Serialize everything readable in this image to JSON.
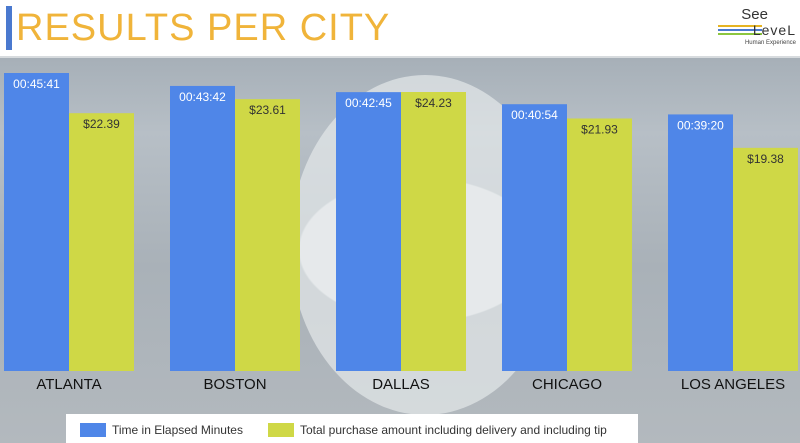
{
  "header": {
    "title": "RESULTS PER CITY",
    "logo": {
      "line1": "See",
      "line2": "LeveL",
      "line3": "Human Experience"
    }
  },
  "colors": {
    "series1": "#4f86e8",
    "series2": "#cfd846",
    "accent": "#f0b43a"
  },
  "chart_data": {
    "type": "bar",
    "title": "RESULTS PER CITY",
    "categories": [
      "ATLANTA",
      "BOSTON",
      "DALLAS",
      "CHICAGO",
      "LOS ANGELES"
    ],
    "series": [
      {
        "name": "Time in Elapsed Minutes",
        "values": [
          2741,
          2622,
          2565,
          2454,
          2360
        ],
        "labels": [
          "00:45:41",
          "00:43:42",
          "00:42:45",
          "00:40:54",
          "00:39:20"
        ]
      },
      {
        "name": "Total purchase amount including delivery and including tip",
        "values": [
          22.39,
          23.61,
          24.23,
          21.93,
          19.38
        ],
        "labels": [
          "$22.39",
          "$23.61",
          "$24.23",
          "$21.93",
          "$19.38"
        ]
      }
    ],
    "grid": false,
    "legend": "bottom"
  }
}
